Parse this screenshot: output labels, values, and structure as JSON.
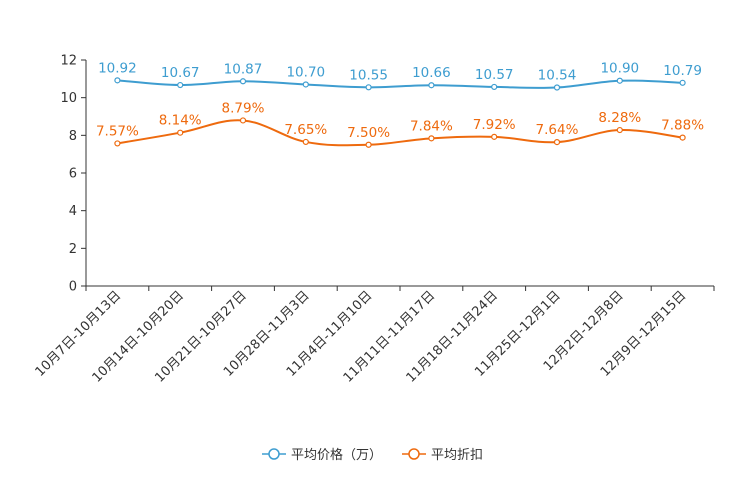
{
  "chart_data": {
    "type": "line",
    "title": "",
    "xlabel": "",
    "ylabel": "",
    "ylim": [
      0,
      12
    ],
    "yticks": [
      0,
      2,
      4,
      6,
      8,
      10,
      12
    ],
    "ytick_labels": [
      "0",
      "2",
      "4",
      "6",
      "8",
      "10",
      "12"
    ],
    "grid": false,
    "legend_position": "bottom-center",
    "categories": [
      "10月7日-10月13日",
      "10月14日-10月20日",
      "10月21日-10月27日",
      "10月28日-11月3日",
      "11月4日-11月10日",
      "11月11日-11月17日",
      "11月18日-11月24日",
      "11月25日-12月1日",
      "12月2日-12月8日",
      "12月9日-12月15日"
    ],
    "series": [
      {
        "name": "平均价格（万）",
        "color": "#3e9dd0",
        "values": [
          10.92,
          10.67,
          10.87,
          10.7,
          10.55,
          10.66,
          10.57,
          10.54,
          10.9,
          10.79
        ],
        "labels": [
          "10.92",
          "10.67",
          "10.87",
          "10.70",
          "10.55",
          "10.66",
          "10.57",
          "10.54",
          "10.90",
          "10.79"
        ]
      },
      {
        "name": "平均折扣",
        "color": "#ee6a0e",
        "values": [
          7.57,
          8.14,
          8.79,
          7.65,
          7.5,
          7.84,
          7.92,
          7.64,
          8.28,
          7.88
        ],
        "labels": [
          "7.57%",
          "8.14%",
          "8.79%",
          "7.65%",
          "7.50%",
          "7.84%",
          "7.92%",
          "7.64%",
          "8.28%",
          "7.88%"
        ]
      }
    ]
  }
}
